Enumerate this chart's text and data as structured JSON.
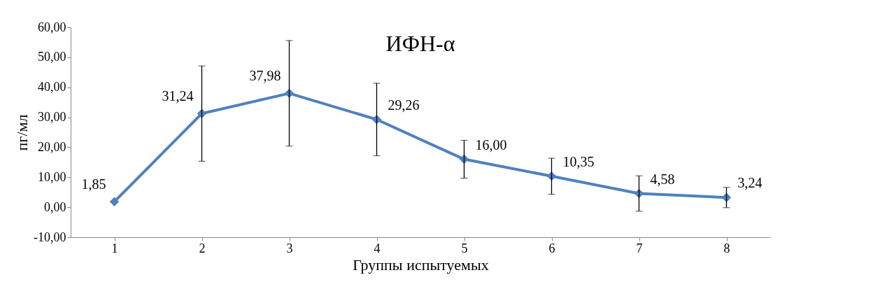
{
  "chart_data": {
    "type": "line",
    "title": "ИФН-α",
    "xlabel": "Группы испытуемых",
    "ylabel": "пг/мл",
    "categories": [
      "1",
      "2",
      "3",
      "4",
      "5",
      "6",
      "7",
      "8"
    ],
    "series": [
      {
        "color": "#4f81bd",
        "values": [
          1.85,
          31.24,
          37.98,
          29.26,
          16.0,
          10.35,
          4.58,
          3.24
        ],
        "errors": [
          null,
          15.9,
          17.6,
          12.1,
          6.3,
          6.0,
          5.9,
          3.4
        ],
        "value_labels": [
          "1,85",
          "31,24",
          "37,98",
          "29,26",
          "16,00",
          "10,35",
          "4,58",
          "3,24"
        ]
      }
    ],
    "ylim": [
      -10,
      60
    ],
    "yticks": [
      {
        "value": -10,
        "label": "-10,00"
      },
      {
        "value": 0,
        "label": "0,00"
      },
      {
        "value": 10,
        "label": "10,00"
      },
      {
        "value": 20,
        "label": "20,00"
      },
      {
        "value": 30,
        "label": "30,00"
      },
      {
        "value": 40,
        "label": "40,00"
      },
      {
        "value": 50,
        "label": "50,00"
      },
      {
        "value": 60,
        "label": "60,00"
      }
    ],
    "grid": false,
    "marker": "diamond",
    "line_style": "solid"
  }
}
